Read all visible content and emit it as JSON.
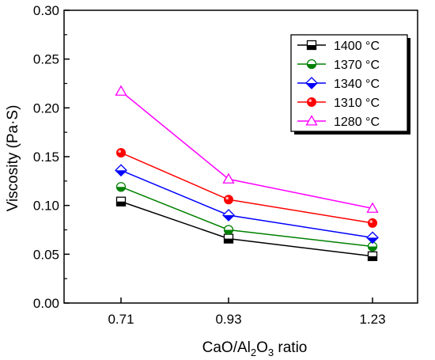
{
  "chart_data": {
    "type": "line",
    "xlabel": {
      "main": "CaO/Al",
      "sub1": "2",
      "mid": "O",
      "sub2": "3",
      "tail": " ratio"
    },
    "ylabel": "Viscosity (Pa·S)",
    "categories": [
      "0.71",
      "0.93",
      "1.23"
    ],
    "yticks": [
      "0.00",
      "0.05",
      "0.10",
      "0.15",
      "0.20",
      "0.25",
      "0.30"
    ],
    "ylim": [
      0,
      0.3
    ],
    "grid": false,
    "legend_position": "top-right",
    "series": [
      {
        "name": "1400 °C",
        "color": "#000000",
        "marker": "square-half",
        "values": [
          0.104,
          0.066,
          0.048
        ]
      },
      {
        "name": "1370 °C",
        "color": "#008000",
        "marker": "circle-half",
        "values": [
          0.119,
          0.075,
          0.058
        ]
      },
      {
        "name": "1340 °C",
        "color": "#0000ff",
        "marker": "diamond",
        "values": [
          0.136,
          0.09,
          0.067
        ]
      },
      {
        "name": "1310 °C",
        "color": "#ff0000",
        "marker": "circle",
        "values": [
          0.154,
          0.106,
          0.082
        ]
      },
      {
        "name": "1280 °C",
        "color": "#ff00ff",
        "marker": "triangle",
        "values": [
          0.217,
          0.127,
          0.097
        ]
      }
    ]
  }
}
